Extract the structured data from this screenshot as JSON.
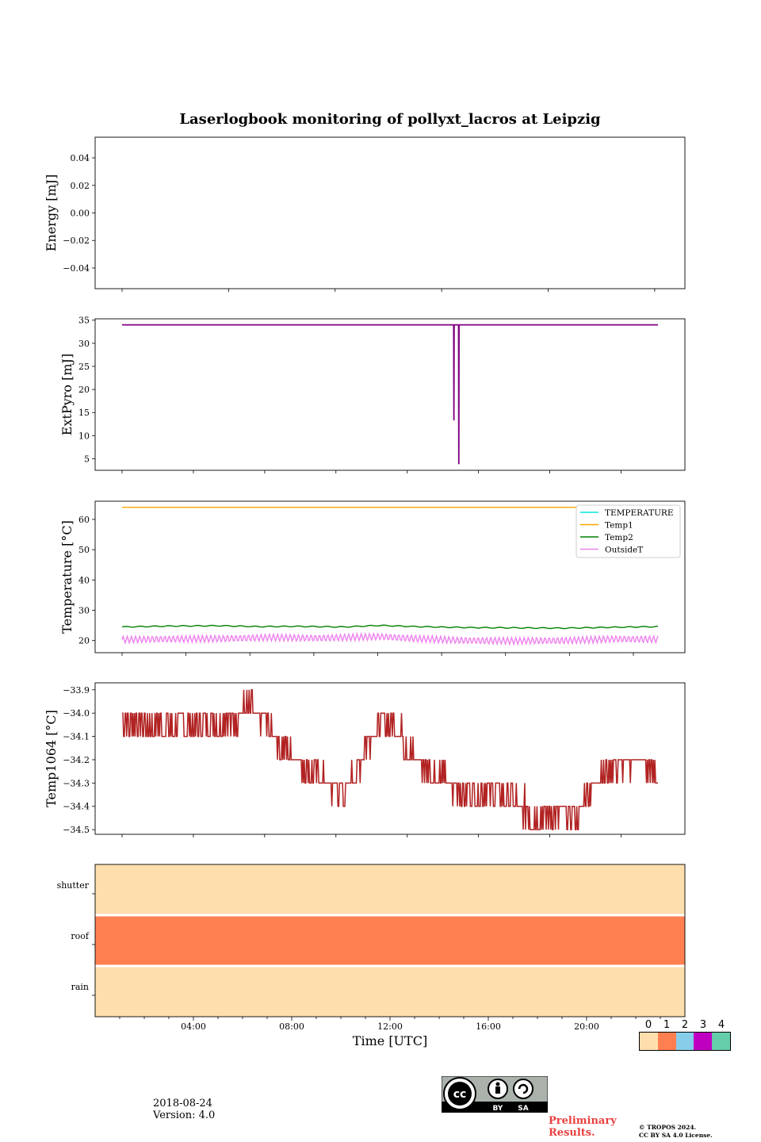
{
  "figure": {
    "title": "Laserlogbook monitoring of pollyxt_lacros at Leipzig",
    "date": "2018-08-24",
    "version": "Version: 4.0",
    "preliminary": "Preliminary Results.",
    "copyright_line1": "© TROPOS 2024.",
    "copyright_line2": "CC BY SA 4.0 License.",
    "license_badge": {
      "by": "BY",
      "sa": "SA"
    }
  },
  "chart_data": [
    {
      "type": "line",
      "ylabel": "Energy [mJ]",
      "ylim": [
        -0.055,
        0.055
      ],
      "yticks": [
        -0.04,
        -0.02,
        0.0,
        0.02,
        0.04
      ],
      "ytick_labels": [
        "−0.04",
        "−0.02",
        "0.00",
        "0.02",
        "0.04"
      ],
      "xtick_hours": [
        1,
        5.333,
        9.667,
        14,
        18.333,
        22.667
      ],
      "series": []
    },
    {
      "type": "line",
      "ylabel": "ExtPyro [mJ]",
      "ylim": [
        2.5,
        35.3
      ],
      "yticks": [
        5,
        10,
        15,
        20,
        25,
        30,
        35
      ],
      "ytick_labels": [
        "5",
        "10",
        "15",
        "20",
        "25",
        "30",
        "35"
      ],
      "xtick_hours": [
        1,
        3.9,
        6.8,
        9.7,
        12.6,
        15.5,
        18.4,
        21.3
      ],
      "color": "#800080",
      "baseline": 34.0,
      "drops": [
        {
          "x": 14.5,
          "y": 13.3
        },
        {
          "x": 14.7,
          "y": 3.8
        }
      ],
      "xlim": [
        1,
        22.8
      ]
    },
    {
      "type": "line",
      "ylabel": "Temperature [°C]",
      "ylim": [
        16,
        66
      ],
      "yticks": [
        20,
        30,
        40,
        50,
        60
      ],
      "ytick_labels": [
        "20",
        "30",
        "40",
        "50",
        "60"
      ],
      "xtick_hours": [
        1,
        3.6,
        6.2,
        8.8,
        11.4,
        14,
        16.6,
        19.2,
        21.8
      ],
      "xlim": [
        1,
        22.8
      ],
      "series": [
        {
          "name": "TEMPERATURE",
          "color": "#00e5e5",
          "values": []
        },
        {
          "name": "Temp1",
          "color": "#ffa500",
          "constant": 64.0
        },
        {
          "name": "Temp2",
          "color": "#008000",
          "x": [
            1,
            3,
            5,
            6.5,
            8,
            10,
            11.5,
            13,
            15,
            17,
            19,
            21,
            22.8
          ],
          "values": [
            24.5,
            24.8,
            24.9,
            24.6,
            24.7,
            24.5,
            25.0,
            24.6,
            24.3,
            24.2,
            24.1,
            24.4,
            24.6
          ]
        },
        {
          "name": "OutsideT",
          "color": "#ee82ee",
          "x": [
            1,
            3,
            5,
            7,
            9,
            11.5,
            13,
            15,
            17,
            19,
            21,
            22.8
          ],
          "values": [
            20.3,
            20.5,
            20.6,
            21.0,
            20.8,
            21.3,
            20.6,
            20.0,
            19.9,
            20.0,
            20.5,
            20.4
          ]
        }
      ],
      "legend_placement": "top-right"
    },
    {
      "type": "line",
      "ylabel": "Temp1064 [°C]",
      "ylim": [
        -34.52,
        -33.87
      ],
      "yticks": [
        -34.5,
        -34.4,
        -34.3,
        -34.2,
        -34.1,
        -34.0,
        -33.9
      ],
      "ytick_labels": [
        "−34.5",
        "−34.4",
        "−34.3",
        "−34.2",
        "−34.1",
        "−34.0",
        "−33.9"
      ],
      "xtick_hours": [
        1,
        3.9,
        6.8,
        9.7,
        12.6,
        15.5,
        18.4,
        21.3
      ],
      "xlim": [
        1,
        22.8
      ],
      "color": "#b22222",
      "trend_x": [
        1,
        4,
        5.5,
        6,
        7,
        7.5,
        8,
        9,
        10,
        10.5,
        11,
        12,
        13,
        14.5,
        16,
        17,
        18,
        19.5,
        20.5,
        22,
        22.8
      ],
      "trend_y": [
        -34.04,
        -34.05,
        -34.03,
        -33.96,
        -34.06,
        -34.15,
        -34.18,
        -34.28,
        -34.35,
        -34.26,
        -34.1,
        -34.03,
        -34.2,
        -34.32,
        -34.33,
        -34.38,
        -34.45,
        -34.42,
        -34.25,
        -34.19,
        -34.27
      ]
    },
    {
      "type": "heatmap",
      "rows": [
        "shutter",
        "roof",
        "rain"
      ],
      "row_values": [
        0,
        1,
        0
      ],
      "xlabel": "Time [UTC]",
      "xtick_labels": [
        "04:00",
        "08:00",
        "12:00",
        "16:00",
        "20:00"
      ],
      "xtick_hours": [
        4,
        8,
        12,
        16,
        20
      ],
      "xlim": [
        0,
        24
      ],
      "colorbar": {
        "labels": [
          "0",
          "1",
          "2",
          "3",
          "4"
        ],
        "colors": [
          "#ffdead",
          "#ff7f50",
          "#87ceeb",
          "#c000c0",
          "#66cdaa"
        ]
      }
    }
  ]
}
